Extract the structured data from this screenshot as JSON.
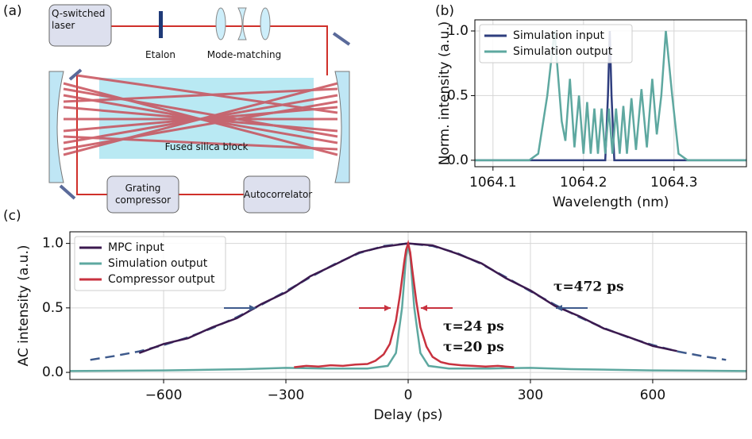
{
  "diagram": {
    "panel_label": "(a)",
    "nodes": [
      {
        "label": "Q-switched laser"
      },
      {
        "label": "Etalon"
      },
      {
        "label": "Mode-matching"
      },
      {
        "label": "Fused silica block"
      },
      {
        "label": "Grating compressor"
      },
      {
        "label": "Autocorrelator"
      }
    ]
  },
  "chart_data": [
    {
      "type": "line",
      "panel_label": "(b)",
      "x_label": "Wavelength (nm)",
      "y_label": "Norm. intensity (a.u.)",
      "xlim": [
        1064.08,
        1064.38
      ],
      "xticks": [
        1064.1,
        1064.2,
        1064.3
      ],
      "ylim": [
        -0.05,
        1.086
      ],
      "yticks": [
        {
          "value": 0,
          "label": "0.0"
        },
        0.5,
        {
          "value": 1,
          "label": "1.0"
        }
      ],
      "grid": true,
      "legend": "upper left",
      "series": [
        {
          "name": "Simulation input",
          "color": "#2e3d7e",
          "x": [
            1064.08,
            1064.224,
            1064.227,
            1064.229,
            1064.231,
            1064.234,
            1064.38
          ],
          "values": [
            0,
            0,
            0.5,
            1.0,
            0.5,
            0,
            0
          ]
        },
        {
          "name": "Simulation output",
          "color": "#5ea8a0",
          "x": [
            1064.08,
            1064.14,
            1064.15,
            1064.16,
            1064.168,
            1064.176,
            1064.18,
            1064.185,
            1064.19,
            1064.195,
            1064.2,
            1064.204,
            1064.208,
            1064.212,
            1064.216,
            1064.22,
            1064.224,
            1064.228,
            1064.232,
            1064.236,
            1064.24,
            1064.244,
            1064.248,
            1064.253,
            1064.258,
            1064.264,
            1064.27,
            1064.276,
            1064.281,
            1064.286,
            1064.291,
            1064.298,
            1064.305,
            1064.315,
            1064.38
          ],
          "values": [
            0,
            0,
            0.05,
            0.5,
            1.0,
            0.3,
            0.15,
            0.63,
            0.1,
            0.5,
            0.05,
            0.45,
            0.05,
            0.4,
            0.05,
            0.4,
            0.05,
            0.4,
            0.05,
            0.4,
            0.05,
            0.42,
            0.05,
            0.48,
            0.08,
            0.55,
            0.1,
            0.63,
            0.2,
            0.5,
            1.0,
            0.5,
            0.05,
            0,
            0
          ]
        }
      ]
    },
    {
      "type": "line",
      "panel_label": "(c)",
      "x_label": "Delay (ps)",
      "y_label": "AC intensity (a.u.)",
      "xlim": [
        -830,
        830
      ],
      "xticks": [
        {
          "value": -600,
          "label": "−600"
        },
        {
          "value": -300,
          "label": "−300"
        },
        0,
        300,
        600
      ],
      "ylim": [
        -0.055,
        1.09
      ],
      "yticks": [
        {
          "value": 0,
          "label": "0.0"
        },
        0.5,
        {
          "value": 1,
          "label": "1.0"
        }
      ],
      "grid": true,
      "legend": "upper left",
      "annotations": [
        {
          "text": "τ=472 ps",
          "color": "#3e5a8c"
        },
        {
          "text": "τ=24 ps",
          "color": "#c8323f"
        },
        {
          "text": "τ=20 ps",
          "color": "#5ea8a0"
        }
      ],
      "series": [
        {
          "color": "#3e5a8c",
          "dashed": true,
          "x": [
            -780,
            -720,
            -660,
            -600,
            -540,
            -480,
            -420,
            -360,
            -300,
            -240,
            -180,
            -120,
            -60,
            0,
            60,
            120,
            180,
            240,
            300,
            360,
            420,
            480,
            540,
            600,
            660,
            720,
            780
          ],
          "values": [
            0.097,
            0.127,
            0.163,
            0.212,
            0.271,
            0.344,
            0.428,
            0.524,
            0.629,
            0.738,
            0.84,
            0.925,
            0.98,
            1,
            0.98,
            0.925,
            0.84,
            0.738,
            0.629,
            0.524,
            0.428,
            0.344,
            0.271,
            0.212,
            0.163,
            0.127,
            0.097
          ]
        },
        {
          "name": "MPC input",
          "color": "#3b1a4f",
          "x": [
            -660,
            -600,
            -540,
            -480,
            -420,
            -360,
            -300,
            -240,
            -180,
            -120,
            -60,
            0,
            60,
            120,
            180,
            240,
            300,
            360,
            420,
            480,
            540,
            600,
            660
          ],
          "values": [
            0.15,
            0.22,
            0.265,
            0.35,
            0.42,
            0.53,
            0.62,
            0.745,
            0.835,
            0.93,
            0.975,
            1.0,
            0.985,
            0.92,
            0.845,
            0.73,
            0.635,
            0.515,
            0.435,
            0.34,
            0.275,
            0.205,
            0.165
          ]
        },
        {
          "name": "Simulation output",
          "color": "#5ea8a0",
          "x": [
            -830,
            -600,
            -400,
            -300,
            -200,
            -100,
            -50,
            -30,
            -15,
            -5,
            0,
            5,
            15,
            30,
            50,
            100,
            200,
            300,
            400,
            600,
            830
          ],
          "values": [
            0.01,
            0.015,
            0.025,
            0.035,
            0.03,
            0.03,
            0.05,
            0.15,
            0.5,
            0.9,
            0.99,
            0.9,
            0.5,
            0.15,
            0.05,
            0.03,
            0.03,
            0.035,
            0.025,
            0.015,
            0.01
          ]
        },
        {
          "name": "Compressor output",
          "color": "#c8323f",
          "x": [
            -280,
            -250,
            -220,
            -190,
            -160,
            -130,
            -100,
            -80,
            -60,
            -45,
            -30,
            -20,
            -10,
            -5,
            0,
            5,
            10,
            20,
            30,
            45,
            60,
            80,
            100,
            130,
            160,
            190,
            220,
            260
          ],
          "values": [
            0.04,
            0.05,
            0.045,
            0.055,
            0.05,
            0.06,
            0.065,
            0.09,
            0.14,
            0.22,
            0.4,
            0.6,
            0.85,
            0.95,
            1.0,
            0.93,
            0.8,
            0.55,
            0.35,
            0.2,
            0.12,
            0.08,
            0.065,
            0.055,
            0.05,
            0.045,
            0.05,
            0.04
          ]
        }
      ]
    }
  ]
}
